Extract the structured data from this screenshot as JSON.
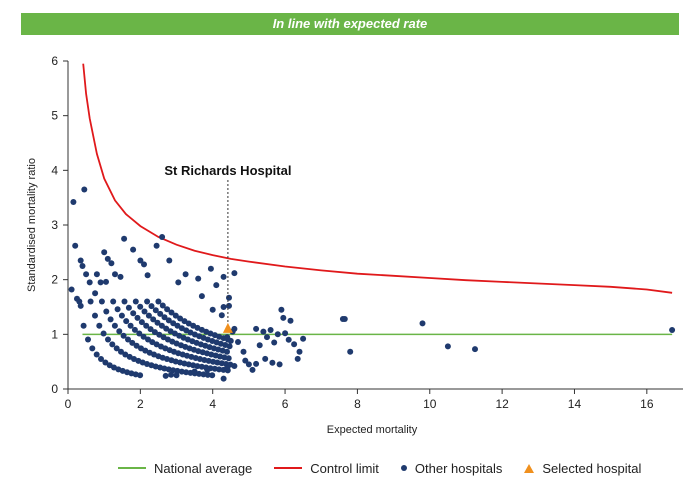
{
  "banner": {
    "text": "In line with expected rate",
    "color": "#6ab547"
  },
  "colors": {
    "national": "#6ab547",
    "control": "#e0191b",
    "other": "#1f3a6e",
    "selected": "#f0901e",
    "axis": "#333333"
  },
  "legend": {
    "national": "National average",
    "control": "Control limit",
    "other": "Other hospitals",
    "selected": "Selected hospital"
  },
  "chart_data": {
    "type": "scatter",
    "title": "",
    "xlabel": "Expected mortality",
    "ylabel": "Standardised mortality ratio",
    "xlim": [
      0,
      17
    ],
    "ylim": [
      0,
      6
    ],
    "xticks": [
      0,
      2,
      4,
      6,
      8,
      10,
      12,
      14,
      16
    ],
    "yticks": [
      0,
      1,
      2,
      3,
      4,
      5,
      6
    ],
    "grid": false,
    "legend_position": "bottom",
    "annotation": {
      "text": "St Richards Hospital",
      "x": 4.42
    },
    "national_average": {
      "name": "National average",
      "y": 1,
      "x_range": [
        0.4,
        16.7
      ]
    },
    "control_limit": {
      "name": "Control limit",
      "x": [
        0.42,
        0.5,
        0.6,
        0.8,
        1.0,
        1.3,
        1.6,
        2.0,
        2.5,
        3.0,
        3.5,
        4.0,
        4.5,
        5.0,
        6.0,
        7.0,
        8.0,
        9.0,
        10.0,
        11.0,
        12.0,
        13.0,
        14.0,
        15.0,
        16.0,
        16.7
      ],
      "y": [
        5.95,
        5.4,
        4.95,
        4.3,
        3.85,
        3.45,
        3.2,
        2.98,
        2.78,
        2.64,
        2.53,
        2.45,
        2.38,
        2.33,
        2.24,
        2.17,
        2.11,
        2.07,
        2.03,
        1.99,
        1.96,
        1.93,
        1.9,
        1.87,
        1.82,
        1.76
      ]
    },
    "selected_hospital": {
      "name": "Selected hospital",
      "x": 4.42,
      "y": 1.1
    },
    "other_hospitals": {
      "name": "Other hospitals",
      "points": [
        [
          0.15,
          3.42
        ],
        [
          0.45,
          3.65
        ],
        [
          0.2,
          2.62
        ],
        [
          0.35,
          2.35
        ],
        [
          0.4,
          2.25
        ],
        [
          0.5,
          2.1
        ],
        [
          0.6,
          1.95
        ],
        [
          0.75,
          1.75
        ],
        [
          0.1,
          1.82
        ],
        [
          0.25,
          1.65
        ],
        [
          0.35,
          1.52
        ],
        [
          0.8,
          2.1
        ],
        [
          1.0,
          2.5
        ],
        [
          1.1,
          2.38
        ],
        [
          1.2,
          2.3
        ],
        [
          1.3,
          2.1
        ],
        [
          0.9,
          1.95
        ],
        [
          1.05,
          1.96
        ],
        [
          1.45,
          2.05
        ],
        [
          1.55,
          2.75
        ],
        [
          1.8,
          2.55
        ],
        [
          2.0,
          2.35
        ],
        [
          2.1,
          2.28
        ],
        [
          2.2,
          2.08
        ],
        [
          2.45,
          2.62
        ],
        [
          2.6,
          2.78
        ],
        [
          2.8,
          2.35
        ],
        [
          3.05,
          1.95
        ],
        [
          3.25,
          2.1
        ],
        [
          3.6,
          2.02
        ],
        [
          3.95,
          2.2
        ],
        [
          4.3,
          2.05
        ],
        [
          4.6,
          2.12
        ],
        [
          3.7,
          1.7
        ],
        [
          4.1,
          1.9
        ],
        [
          4.45,
          1.67
        ],
        [
          4.45,
          1.52
        ],
        [
          4.3,
          1.5
        ],
        [
          4.25,
          1.35
        ],
        [
          4.0,
          1.45
        ],
        [
          4.6,
          1.1
        ],
        [
          4.55,
          1.05
        ],
        [
          4.4,
          0.95
        ],
        [
          4.5,
          0.88
        ],
        [
          4.7,
          0.86
        ],
        [
          4.85,
          0.68
        ],
        [
          4.9,
          0.52
        ],
        [
          4.6,
          0.42
        ],
        [
          4.4,
          0.38
        ],
        [
          4.3,
          0.19
        ],
        [
          3.85,
          0.35
        ],
        [
          3.5,
          0.32
        ],
        [
          5.2,
          1.1
        ],
        [
          5.4,
          1.05
        ],
        [
          5.5,
          0.95
        ],
        [
          5.6,
          1.08
        ],
        [
          5.7,
          0.85
        ],
        [
          5.3,
          0.8
        ],
        [
          5.45,
          0.55
        ],
        [
          5.65,
          0.48
        ],
        [
          5.2,
          0.46
        ],
        [
          5.0,
          0.45
        ],
        [
          5.1,
          0.35
        ],
        [
          5.8,
          1.0
        ],
        [
          5.9,
          1.45
        ],
        [
          5.95,
          1.3
        ],
        [
          6.15,
          1.25
        ],
        [
          6.0,
          1.02
        ],
        [
          6.25,
          0.82
        ],
        [
          6.4,
          0.68
        ],
        [
          6.35,
          0.55
        ],
        [
          6.1,
          0.9
        ],
        [
          6.5,
          0.92
        ],
        [
          5.85,
          0.45
        ],
        [
          7.6,
          1.28
        ],
        [
          7.65,
          1.28
        ],
        [
          7.8,
          0.68
        ],
        [
          9.8,
          1.2
        ],
        [
          10.5,
          0.78
        ],
        [
          11.25,
          0.73
        ],
        [
          16.7,
          1.08
        ],
        [
          2.85,
          0.26
        ],
        [
          3.0,
          0.25
        ],
        [
          2.7,
          0.24
        ]
      ],
      "curve_families": [
        0.5,
        1.0,
        1.5,
        2.0,
        2.5,
        3.0,
        3.5,
        4.0
      ]
    }
  }
}
